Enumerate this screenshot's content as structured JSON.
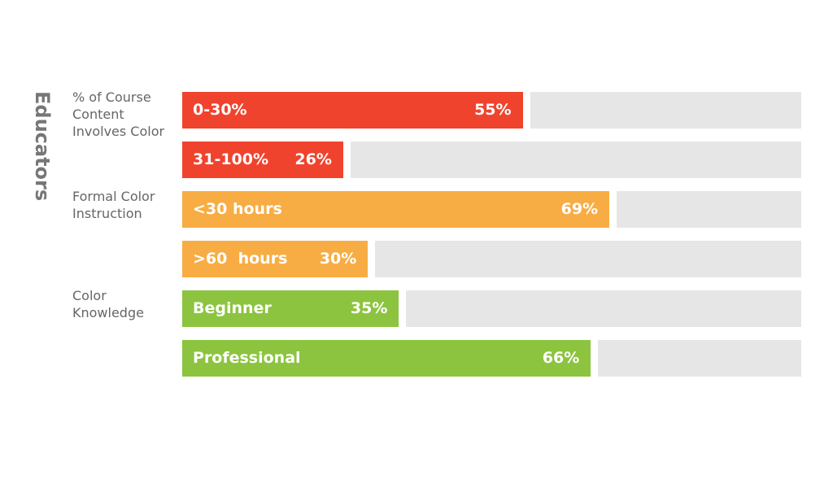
{
  "chart_data": {
    "type": "bar",
    "orientation": "horizontal",
    "title": "Educators",
    "xlim": [
      0,
      100
    ],
    "track_color": "#e6e6e7",
    "groups": [
      {
        "name": "% of Course Content Involves Color",
        "color": "#f0432e",
        "categories": [
          "0-30%",
          "31-100%"
        ],
        "values": [
          55,
          26
        ],
        "value_labels": [
          "55%",
          "26%"
        ]
      },
      {
        "name": "Formal Color Instruction",
        "color": "#f7ad43",
        "categories": [
          "<30 hours",
          ">60  hours"
        ],
        "values": [
          69,
          30
        ],
        "value_labels": [
          "69%",
          "30%"
        ]
      },
      {
        "name": "Color Knowledge",
        "color": "#8cc43f",
        "categories": [
          "Beginner",
          "Professional"
        ],
        "values": [
          35,
          66
        ],
        "value_labels": [
          "35%",
          "66%"
        ]
      }
    ]
  }
}
